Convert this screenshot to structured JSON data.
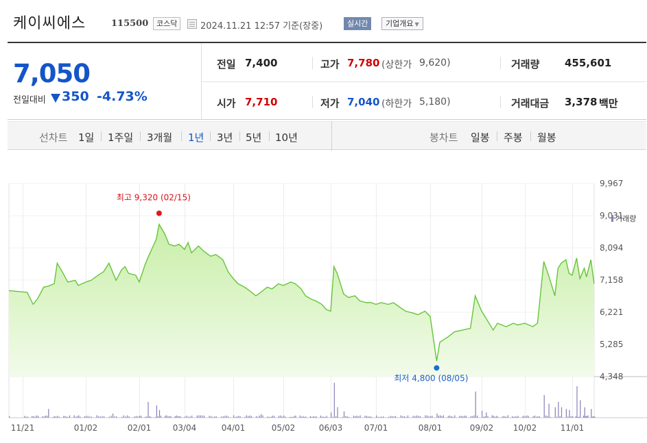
{
  "header": {
    "company": "케이씨에스",
    "code": "115500",
    "market": "코스닥",
    "datetime": "2024.11.21 12:57 기준(장중)",
    "realtime": "실시간",
    "overview": "기업개요"
  },
  "quote": {
    "price": "7,050",
    "change_label": "전일대비",
    "change_amount": "350",
    "change_percent": "-4.73%",
    "prev_label": "전일",
    "prev_value": "7,400",
    "high_label": "고가",
    "high_value": "7,780",
    "upper_limit_label": "(상한가",
    "upper_limit_value": "9,620)",
    "volume_label": "거래량",
    "volume_value": "455,601",
    "open_label": "시가",
    "open_value": "7,710",
    "low_label": "저가",
    "low_value": "7,040",
    "lower_limit_label": "(하한가",
    "lower_limit_value": "5,180)",
    "amount_label": "거래대금",
    "amount_value": "3,378",
    "amount_unit": "백만"
  },
  "periods": {
    "line_label": "선차트",
    "line_items": [
      "1일",
      "1주일",
      "3개월",
      "1년",
      "3년",
      "5년",
      "10년"
    ],
    "active": "1년",
    "candle_label": "봉차트",
    "candle_items": [
      "일봉",
      "주봉",
      "월봉"
    ]
  },
  "colors": {
    "line": "#66c43a",
    "fill_top": "#c8eea8",
    "fill_bottom": "#f2fbea",
    "up": "#d20000",
    "down": "#1455c8",
    "volume": "#8a7db8"
  },
  "chart_data": {
    "type": "area",
    "x_tick_labels": [
      "11/21",
      "01/02",
      "02/01",
      "03/04",
      "04/01",
      "05/02",
      "06/03",
      "07/01",
      "08/01",
      "09/02",
      "10/02",
      "11/01"
    ],
    "y_tick_labels": [
      "9,967",
      "9,031",
      "8,094",
      "7,158",
      "6,221",
      "5,285",
      "4,348"
    ],
    "ylim": [
      4348,
      9967
    ],
    "max_annotation": "최고 9,320 (02/15)",
    "min_annotation": "최저 4,800 (08/05)",
    "volume_legend": "거래량",
    "price_series": [
      [
        "2023-11-21",
        6850
      ],
      [
        "2023-11-24",
        6800
      ],
      [
        "2023-11-28",
        6450
      ],
      [
        "2023-12-01",
        6620
      ],
      [
        "2023-12-05",
        6950
      ],
      [
        "2023-12-08",
        6980
      ],
      [
        "2023-12-12",
        7050
      ],
      [
        "2023-12-14",
        7650
      ],
      [
        "2023-12-18",
        7350
      ],
      [
        "2023-12-21",
        7100
      ],
      [
        "2023-12-26",
        7150
      ],
      [
        "2023-12-28",
        7000
      ],
      [
        "2024-01-02",
        7100
      ],
      [
        "2024-01-05",
        7150
      ],
      [
        "2024-01-09",
        7300
      ],
      [
        "2024-01-12",
        7400
      ],
      [
        "2024-01-15",
        7650
      ],
      [
        "2024-01-17",
        7400
      ],
      [
        "2024-01-19",
        7150
      ],
      [
        "2024-01-22",
        7450
      ],
      [
        "2024-01-24",
        7550
      ],
      [
        "2024-01-26",
        7350
      ],
      [
        "2024-01-30",
        7300
      ],
      [
        "2024-02-01",
        7100
      ],
      [
        "2024-02-05",
        7600
      ],
      [
        "2024-02-07",
        7800
      ],
      [
        "2024-02-13",
        8350
      ],
      [
        "2024-02-15",
        8780
      ],
      [
        "2024-02-19",
        8500
      ],
      [
        "2024-02-22",
        8200
      ],
      [
        "2024-02-26",
        8150
      ],
      [
        "2024-02-29",
        8200
      ],
      [
        "2024-03-04",
        8050
      ],
      [
        "2024-03-06",
        8250
      ],
      [
        "2024-03-08",
        7950
      ],
      [
        "2024-03-12",
        8150
      ],
      [
        "2024-03-15",
        8000
      ],
      [
        "2024-03-19",
        7850
      ],
      [
        "2024-03-22",
        7900
      ],
      [
        "2024-03-26",
        7750
      ],
      [
        "2024-03-29",
        7400
      ],
      [
        "2024-04-01",
        7200
      ],
      [
        "2024-04-04",
        7050
      ],
      [
        "2024-04-08",
        6950
      ],
      [
        "2024-04-11",
        6850
      ],
      [
        "2024-04-15",
        6700
      ],
      [
        "2024-04-18",
        6800
      ],
      [
        "2024-04-22",
        6950
      ],
      [
        "2024-04-25",
        6900
      ],
      [
        "2024-04-29",
        7050
      ],
      [
        "2024-05-02",
        7000
      ],
      [
        "2024-05-07",
        7100
      ],
      [
        "2024-05-10",
        7050
      ],
      [
        "2024-05-14",
        6900
      ],
      [
        "2024-05-17",
        6700
      ],
      [
        "2024-05-21",
        6600
      ],
      [
        "2024-05-24",
        6550
      ],
      [
        "2024-05-28",
        6450
      ],
      [
        "2024-05-31",
        6300
      ],
      [
        "2024-06-03",
        6250
      ],
      [
        "2024-06-05",
        7550
      ],
      [
        "2024-06-07",
        7350
      ],
      [
        "2024-06-11",
        6750
      ],
      [
        "2024-06-14",
        6650
      ],
      [
        "2024-06-18",
        6700
      ],
      [
        "2024-06-21",
        6550
      ],
      [
        "2024-06-25",
        6500
      ],
      [
        "2024-06-28",
        6500
      ],
      [
        "2024-07-01",
        6450
      ],
      [
        "2024-07-04",
        6500
      ],
      [
        "2024-07-08",
        6450
      ],
      [
        "2024-07-11",
        6500
      ],
      [
        "2024-07-15",
        6350
      ],
      [
        "2024-07-18",
        6250
      ],
      [
        "2024-07-22",
        6200
      ],
      [
        "2024-07-25",
        6150
      ],
      [
        "2024-07-29",
        6250
      ],
      [
        "2024-08-01",
        6100
      ],
      [
        "2024-08-05",
        4800
      ],
      [
        "2024-08-07",
        5350
      ],
      [
        "2024-08-12",
        5500
      ],
      [
        "2024-08-16",
        5650
      ],
      [
        "2024-08-21",
        5700
      ],
      [
        "2024-08-26",
        5750
      ],
      [
        "2024-08-29",
        6700
      ],
      [
        "2024-09-02",
        6250
      ],
      [
        "2024-09-05",
        6050
      ],
      [
        "2024-09-10",
        5700
      ],
      [
        "2024-09-13",
        5900
      ],
      [
        "2024-09-19",
        5800
      ],
      [
        "2024-09-24",
        5900
      ],
      [
        "2024-09-27",
        5850
      ],
      [
        "2024-10-02",
        5900
      ],
      [
        "2024-10-07",
        5800
      ],
      [
        "2024-10-10",
        5900
      ],
      [
        "2024-10-14",
        7700
      ],
      [
        "2024-10-17",
        7300
      ],
      [
        "2024-10-21",
        6700
      ],
      [
        "2024-10-23",
        7500
      ],
      [
        "2024-10-25",
        7650
      ],
      [
        "2024-10-28",
        7750
      ],
      [
        "2024-10-30",
        7350
      ],
      [
        "2024-11-01",
        7300
      ],
      [
        "2024-11-05",
        7800
      ],
      [
        "2024-11-08",
        7200
      ],
      [
        "2024-11-12",
        7500
      ],
      [
        "2024-11-14",
        7250
      ],
      [
        "2024-11-18",
        7750
      ],
      [
        "2024-11-21",
        7050
      ]
    ],
    "max_point": [
      "2024-02-15",
      9320
    ],
    "min_point": [
      "2024-08-05",
      4800
    ],
    "volume_spikes": [
      [
        "2023-12-08",
        0.25
      ],
      [
        "2024-01-17",
        0.12
      ],
      [
        "2024-02-07",
        0.45
      ],
      [
        "2024-02-13",
        0.35
      ],
      [
        "2024-02-15",
        0.22
      ],
      [
        "2024-04-18",
        0.1
      ],
      [
        "2024-06-03",
        0.15
      ],
      [
        "2024-06-05",
        1.0
      ],
      [
        "2024-06-07",
        0.3
      ],
      [
        "2024-06-11",
        0.18
      ],
      [
        "2024-08-05",
        0.12
      ],
      [
        "2024-08-29",
        0.75
      ],
      [
        "2024-09-02",
        0.2
      ],
      [
        "2024-09-05",
        0.15
      ],
      [
        "2024-10-14",
        0.65
      ],
      [
        "2024-10-17",
        0.4
      ],
      [
        "2024-10-21",
        0.3
      ],
      [
        "2024-10-23",
        0.45
      ],
      [
        "2024-10-25",
        0.3
      ],
      [
        "2024-10-28",
        0.25
      ],
      [
        "2024-10-30",
        0.22
      ],
      [
        "2024-11-05",
        0.9
      ],
      [
        "2024-11-08",
        0.5
      ],
      [
        "2024-11-12",
        0.3
      ],
      [
        "2024-11-18",
        0.25
      ]
    ]
  }
}
